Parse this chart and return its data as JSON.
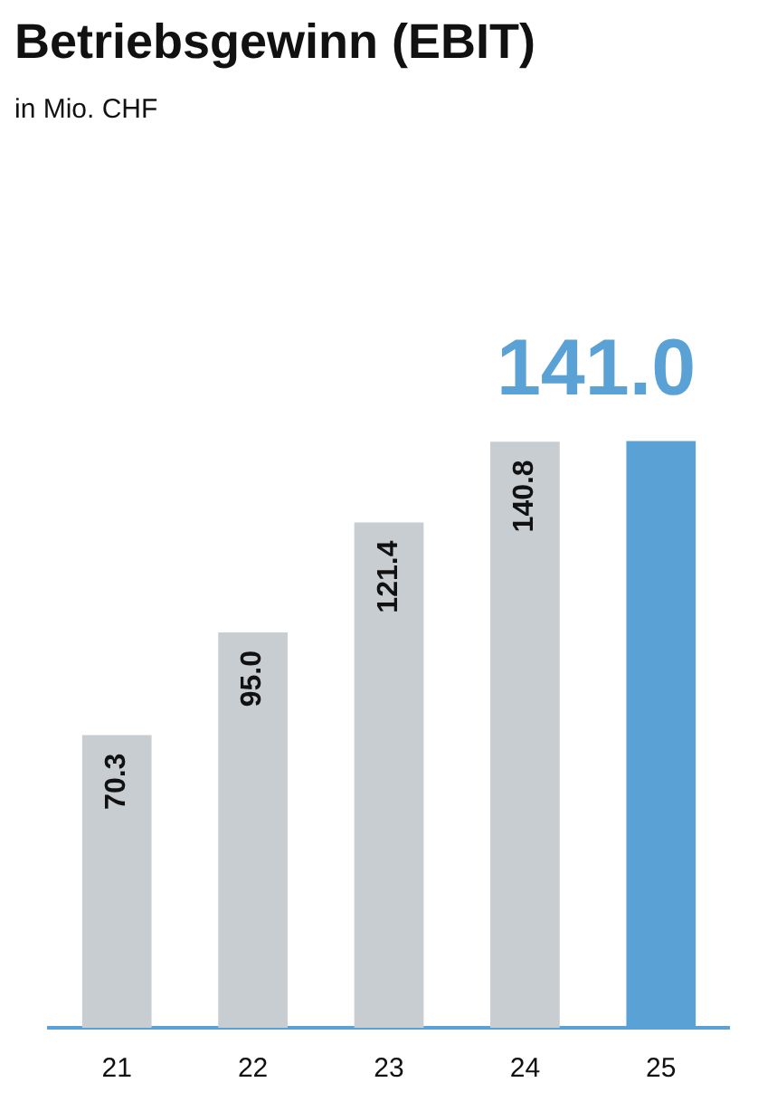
{
  "chart_data": {
    "type": "bar",
    "title": "Betriebsgewinn (EBIT)",
    "subtitle": "in Mio. CHF",
    "categories": [
      "21",
      "22",
      "23",
      "24",
      "25"
    ],
    "values": [
      70.3,
      95.0,
      121.4,
      140.8,
      141.0
    ],
    "colors": [
      "#c8cdd1",
      "#c8cdd1",
      "#c8cdd1",
      "#c8cdd1",
      "#5aa2d5"
    ],
    "value_labels": [
      "70.3",
      "95.0",
      "121.4",
      "140.8",
      "141.0"
    ],
    "grid": false,
    "legend": false
  }
}
